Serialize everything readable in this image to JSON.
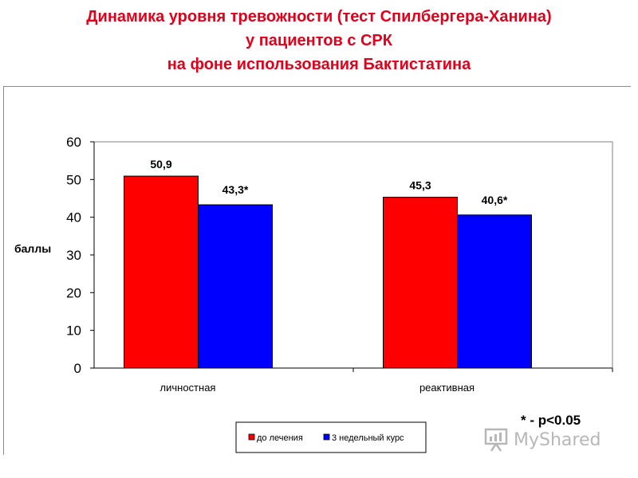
{
  "title_lines": [
    "Динамика уровня тревожности (тест Спилбергера-Ханина)",
    "у пациентов с СРК",
    "на фоне использования Бактистатина"
  ],
  "footnote": "* - р<0.05",
  "watermark": {
    "text": "MyShared",
    "icon": "presentation-board-icon"
  },
  "colors": {
    "title": "#e2001a",
    "series_before": "#ff0000",
    "series_after": "#0000ff"
  },
  "chart_data": {
    "type": "bar",
    "ylabel": "баллы",
    "ylim": [
      0,
      60
    ],
    "yticks": [
      "0",
      "10",
      "20",
      "30",
      "40",
      "50",
      "60"
    ],
    "grid": false,
    "legend_position": "bottom",
    "categories": [
      "личностная",
      "реактивная"
    ],
    "series": [
      {
        "name": "до лечения",
        "color": "#ff0000",
        "values": [
          50.9,
          45.3
        ],
        "labels": [
          "50,9",
          "45,3"
        ]
      },
      {
        "name": "3 недельный курс",
        "color": "#0000ff",
        "values": [
          43.3,
          40.6
        ],
        "labels": [
          "43,3*",
          "40,6*"
        ]
      }
    ]
  }
}
